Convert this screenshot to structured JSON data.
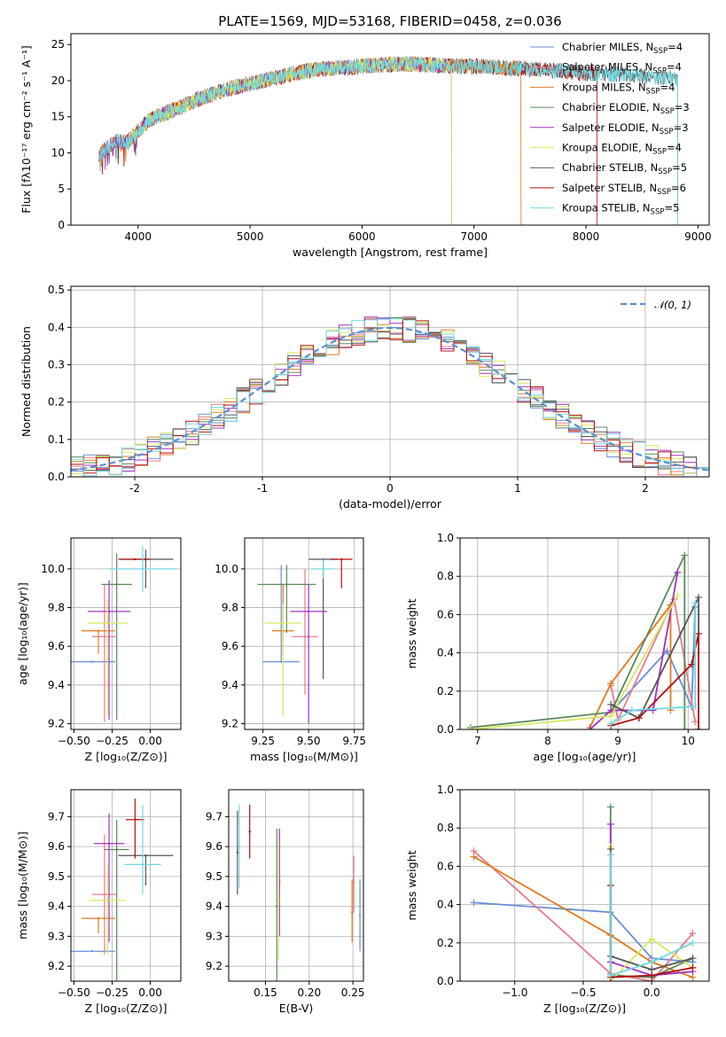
{
  "colors": {
    "chabrier_miles": "#6a8dd6",
    "salpeter_miles": "#e87a8e",
    "kroupa_miles": "#e07a20",
    "chabrier_elodie": "#5a8a5a",
    "salpeter_elodie": "#a030c0",
    "kroupa_elodie": "#d8e860",
    "chabrier_stelib": "#555555",
    "salpeter_stelib": "#b01010",
    "kroupa_stelib": "#70d8e0",
    "normal": "#5b8fd6"
  },
  "chart_data": [
    {
      "id": "spectrum",
      "type": "line",
      "title": "PLATE=1569, MJD=53168, FIBERID=0458, z=0.036",
      "xlabel": "wavelength [Angstrom, rest frame]",
      "ylabel": "Flux [fλ10⁻¹⁷ erg cm⁻² s⁻¹ A⁻¹]",
      "xlim": [
        3400,
        9100
      ],
      "ylim": [
        0,
        26.5
      ],
      "xticks": [
        4000,
        5000,
        6000,
        7000,
        8000,
        9000
      ],
      "yticks": [
        0,
        5,
        10,
        15,
        20,
        25
      ],
      "grid": false,
      "legend_position": "upper right",
      "legend": [
        {
          "label": "Chabrier MILES, N",
          "sub": "SSP",
          "suffix": "=4",
          "color_key": "chabrier_miles"
        },
        {
          "label": "Salpeter MILES, N",
          "sub": "SSP",
          "suffix": "=4",
          "color_key": "salpeter_miles"
        },
        {
          "label": "Kroupa MILES, N",
          "sub": "SSP",
          "suffix": "=4",
          "color_key": "kroupa_miles"
        },
        {
          "label": "Chabrier ELODIE, N",
          "sub": "SSP",
          "suffix": "=3",
          "color_key": "chabrier_elodie"
        },
        {
          "label": "Salpeter ELODIE, N",
          "sub": "SSP",
          "suffix": "=3",
          "color_key": "salpeter_elodie"
        },
        {
          "label": "Kroupa ELODIE, N",
          "sub": "SSP",
          "suffix": "=4",
          "color_key": "kroupa_elodie"
        },
        {
          "label": "Chabrier STELIB, N",
          "sub": "SSP",
          "suffix": "=5",
          "color_key": "chabrier_stelib"
        },
        {
          "label": "Salpeter STELIB, N",
          "sub": "SSP",
          "suffix": "=6",
          "color_key": "salpeter_stelib"
        },
        {
          "label": "Kroupa STELIB, N",
          "sub": "SSP",
          "suffix": "=5",
          "color_key": "kroupa_stelib"
        }
      ],
      "continuum": {
        "x": [
          3650,
          3700,
          3800,
          3900,
          4000,
          4100,
          4200,
          4400,
          4600,
          4800,
          5000,
          5200,
          5400,
          5600,
          5800,
          6000,
          6200,
          6400,
          6600,
          6800,
          7000,
          7200,
          7400,
          7600,
          7800,
          8000,
          8200,
          8400,
          8600,
          8800
        ],
        "y": [
          9.5,
          10.5,
          11.5,
          11.5,
          13.0,
          14.5,
          15.2,
          16.5,
          17.8,
          18.8,
          19.6,
          20.3,
          21.0,
          21.6,
          21.8,
          22.0,
          22.2,
          22.3,
          22.2,
          22.0,
          22.0,
          21.8,
          21.7,
          21.5,
          21.3,
          21.0,
          20.9,
          20.8,
          20.5,
          20.3
        ]
      },
      "models": [
        {
          "color_key": "chabrier_stelib",
          "xmin": 3650,
          "xmax": 8820
        },
        {
          "color_key": "salpeter_stelib",
          "xmin": 3650,
          "xmax": 8100
        },
        {
          "color_key": "kroupa_miles",
          "xmin": 3650,
          "xmax": 7420
        },
        {
          "color_key": "salpeter_elodie",
          "xmin": 3650,
          "xmax": 6800
        },
        {
          "color_key": "kroupa_elodie",
          "xmin": 3910,
          "xmax": 6800
        },
        {
          "color_key": "kroupa_stelib",
          "xmin": 3650,
          "xmax": 8820
        }
      ]
    },
    {
      "id": "residuals",
      "type": "histogram",
      "xlabel": "(data-model)/error",
      "ylabel": "Normed distribution",
      "xlim": [
        -2.5,
        2.5
      ],
      "ylim": [
        0,
        0.51
      ],
      "xticks": [
        -2,
        -1,
        0,
        1,
        2
      ],
      "yticks": [
        0.0,
        0.1,
        0.2,
        0.3,
        0.4,
        0.5
      ],
      "grid": true,
      "legend_position": "upper right",
      "legend": [
        {
          "label": "𝒩(0, 1)",
          "color_key": "normal",
          "style": "dashed"
        }
      ],
      "bin_width": 0.1,
      "series_keys": [
        "chabrier_miles",
        "salpeter_miles",
        "kroupa_miles",
        "chabrier_elodie",
        "salpeter_elodie",
        "kroupa_elodie",
        "chabrier_stelib",
        "salpeter_stelib",
        "kroupa_stelib"
      ]
    },
    {
      "id": "age_vs_Z",
      "type": "scatter",
      "xlabel": "Z [log₁₀(Z/Z⊙)]",
      "ylabel": "age  [log₁₀(age/yr)]",
      "xlim": [
        -0.52,
        0.2
      ],
      "ylim": [
        9.17,
        10.16
      ],
      "xticks": [
        -0.5,
        -0.25,
        0.0
      ],
      "xticklabels": [
        "−0.50",
        "−0.25",
        "0.00"
      ],
      "yticks": [
        9.2,
        9.4,
        9.6,
        9.8,
        10.0
      ],
      "yticklabels": [
        "9.2",
        "9.4",
        "9.6",
        "9.8",
        "10.0"
      ],
      "grid": true,
      "points": [
        {
          "x": -0.38,
          "y": 9.52,
          "xerr": 0.15,
          "yerr_lo": 0.0,
          "yerr_hi": 0.0,
          "color_key": "chabrier_miles"
        },
        {
          "x": -0.3,
          "y": 9.65,
          "xerr": 0.08,
          "yerr_lo": 0.44,
          "yerr_hi": 0.27,
          "color_key": "salpeter_miles"
        },
        {
          "x": -0.34,
          "y": 9.68,
          "xerr": 0.11,
          "yerr_lo": 0.12,
          "yerr_hi": 0.0,
          "color_key": "kroupa_miles"
        },
        {
          "x": -0.22,
          "y": 9.92,
          "xerr": 0.1,
          "yerr_lo": 0.7,
          "yerr_hi": 0.16,
          "color_key": "chabrier_elodie"
        },
        {
          "x": -0.27,
          "y": 9.78,
          "xerr": 0.14,
          "yerr_lo": 0.56,
          "yerr_hi": 0.16,
          "color_key": "salpeter_elodie"
        },
        {
          "x": -0.28,
          "y": 9.72,
          "xerr": 0.13,
          "yerr_lo": 0.48,
          "yerr_hi": 0.12,
          "color_key": "kroupa_elodie"
        },
        {
          "x": -0.03,
          "y": 10.05,
          "xerr": 0.18,
          "yerr_lo": 0.15,
          "yerr_hi": 0.05,
          "color_key": "chabrier_stelib"
        },
        {
          "x": -0.1,
          "y": 10.05,
          "xerr": 0.1,
          "yerr_lo": 0.0,
          "yerr_hi": 0.0,
          "color_key": "salpeter_stelib"
        },
        {
          "x": -0.05,
          "y": 10.0,
          "xerr": 0.22,
          "yerr_lo": 0.12,
          "yerr_hi": 0.12,
          "color_key": "kroupa_stelib"
        }
      ]
    },
    {
      "id": "age_vs_mass",
      "type": "scatter",
      "xlabel": "mass [log₁₀(M/M⊙)]",
      "ylabel": "",
      "xlim": [
        9.15,
        9.8
      ],
      "ylim": [
        9.17,
        10.16
      ],
      "xticks": [
        9.25,
        9.5,
        9.75
      ],
      "xticklabels": [
        "9.25",
        "9.50",
        "9.75"
      ],
      "yticks": [
        9.2,
        9.4,
        9.6,
        9.8,
        10.0
      ],
      "yticklabels": [
        "9.2",
        "9.4",
        "9.6",
        "9.8",
        "10.0"
      ],
      "grid": true,
      "points": [
        {
          "x": 9.35,
          "y": 9.52,
          "xerr": 0.1,
          "yerr_lo": 0.0,
          "yerr_hi": 0.5,
          "color_key": "chabrier_miles"
        },
        {
          "x": 9.48,
          "y": 9.65,
          "xerr": 0.07,
          "yerr_lo": 0.3,
          "yerr_hi": 0.35,
          "color_key": "salpeter_miles"
        },
        {
          "x": 9.36,
          "y": 9.68,
          "xerr": 0.06,
          "yerr_lo": 0.12,
          "yerr_hi": 0.24,
          "color_key": "kroupa_miles"
        },
        {
          "x": 9.38,
          "y": 9.92,
          "xerr": 0.16,
          "yerr_lo": 0.25,
          "yerr_hi": 0.1,
          "color_key": "chabrier_elodie"
        },
        {
          "x": 9.5,
          "y": 9.78,
          "xerr": 0.1,
          "yerr_lo": 0.58,
          "yerr_hi": 0.14,
          "color_key": "salpeter_elodie"
        },
        {
          "x": 9.36,
          "y": 9.72,
          "xerr": 0.1,
          "yerr_lo": 0.48,
          "yerr_hi": 0.1,
          "color_key": "kroupa_elodie"
        },
        {
          "x": 9.58,
          "y": 10.05,
          "xerr": 0.08,
          "yerr_lo": 0.62,
          "yerr_hi": 0.0,
          "color_key": "chabrier_stelib"
        },
        {
          "x": 9.68,
          "y": 10.05,
          "xerr": 0.06,
          "yerr_lo": 0.15,
          "yerr_hi": 0.0,
          "color_key": "salpeter_stelib"
        },
        {
          "x": 9.58,
          "y": 10.0,
          "xerr": 0.06,
          "yerr_lo": 0.05,
          "yerr_hi": 0.05,
          "color_key": "kroupa_stelib"
        }
      ]
    },
    {
      "id": "weight_vs_age",
      "type": "line",
      "xlabel": "age  [log₁₀(age/yr)]",
      "ylabel": "mass weight",
      "xlim": [
        6.75,
        10.3
      ],
      "ylim": [
        0,
        1.0
      ],
      "xticks": [
        7,
        8,
        9,
        10
      ],
      "xticklabels": [
        "7",
        "8",
        "9",
        "10"
      ],
      "yticks": [
        0.0,
        0.2,
        0.4,
        0.6,
        0.8,
        1.0
      ],
      "yticklabels": [
        "0.0",
        "0.2",
        "0.4",
        "0.6",
        "0.8",
        "1.0"
      ],
      "grid": true,
      "series": [
        {
          "color_key": "chabrier_miles",
          "x": [
            8.9,
            9.7,
            10.05,
            10.1
          ],
          "y": [
            0.09,
            0.41,
            0.12,
            0.64
          ]
        },
        {
          "color_key": "salpeter_miles",
          "x": [
            8.9,
            9.0,
            9.8,
            10.1
          ],
          "y": [
            0.23,
            0.05,
            0.68,
            0.04
          ]
        },
        {
          "color_key": "kroupa_miles",
          "x": [
            8.6,
            8.9,
            9.75,
            9.75
          ],
          "y": [
            0.01,
            0.24,
            0.65,
            0.1
          ]
        },
        {
          "color_key": "chabrier_elodie",
          "x": [
            6.9,
            8.9,
            9.95,
            9.95
          ],
          "y": [
            0.01,
            0.09,
            0.91,
            0.0
          ]
        },
        {
          "color_key": "salpeter_elodie",
          "x": [
            8.6,
            8.9,
            9.5,
            9.85
          ],
          "y": [
            0.0,
            0.1,
            0.1,
            0.82
          ]
        },
        {
          "color_key": "kroupa_elodie",
          "x": [
            6.9,
            8.9,
            9.85
          ],
          "y": [
            0.0,
            0.07,
            0.7
          ]
        },
        {
          "color_key": "chabrier_stelib",
          "x": [
            8.9,
            9.3,
            10.15,
            10.15
          ],
          "y": [
            0.13,
            0.06,
            0.69,
            0.0
          ]
        },
        {
          "color_key": "salpeter_stelib",
          "x": [
            8.9,
            9.3,
            10.05,
            10.15,
            10.15
          ],
          "y": [
            0.02,
            0.06,
            0.34,
            0.5,
            0.0
          ]
        },
        {
          "color_key": "kroupa_stelib",
          "x": [
            8.9,
            9.2,
            10.1,
            10.1
          ],
          "y": [
            0.03,
            0.1,
            0.12,
            0.66
          ]
        }
      ]
    },
    {
      "id": "mass_vs_Z",
      "type": "scatter",
      "xlabel": "Z [log₁₀(Z/Z⊙)]",
      "ylabel": "mass [log₁₀(M/M⊙)]",
      "xlim": [
        -0.52,
        0.2
      ],
      "ylim": [
        9.15,
        9.79
      ],
      "xticks": [
        -0.5,
        -0.25,
        0.0
      ],
      "xticklabels": [
        "−0.50",
        "−0.25",
        "0.00"
      ],
      "yticks": [
        9.2,
        9.3,
        9.4,
        9.5,
        9.6,
        9.7
      ],
      "yticklabels": [
        "9.2",
        "9.3",
        "9.4",
        "9.5",
        "9.6",
        "9.7"
      ],
      "grid": true,
      "points": [
        {
          "x": -0.38,
          "y": 9.25,
          "xerr": 0.15,
          "yerr_lo": 0.0,
          "yerr_hi": 0.0,
          "color_key": "chabrier_miles"
        },
        {
          "x": -0.3,
          "y": 9.44,
          "xerr": 0.08,
          "yerr_lo": 0.2,
          "yerr_hi": 0.2,
          "color_key": "salpeter_miles"
        },
        {
          "x": -0.34,
          "y": 9.36,
          "xerr": 0.11,
          "yerr_lo": 0.05,
          "yerr_hi": 0.0,
          "color_key": "kroupa_miles"
        },
        {
          "x": -0.22,
          "y": 9.59,
          "xerr": 0.08,
          "yerr_lo": 0.44,
          "yerr_hi": 0.1,
          "color_key": "chabrier_elodie"
        },
        {
          "x": -0.27,
          "y": 9.61,
          "xerr": 0.1,
          "yerr_lo": 0.33,
          "yerr_hi": 0.1,
          "color_key": "salpeter_elodie"
        },
        {
          "x": -0.28,
          "y": 9.42,
          "xerr": 0.12,
          "yerr_lo": 0.18,
          "yerr_hi": 0.12,
          "color_key": "kroupa_elodie"
        },
        {
          "x": -0.03,
          "y": 9.57,
          "xerr": 0.18,
          "yerr_lo": 0.1,
          "yerr_hi": 0.0,
          "color_key": "chabrier_stelib"
        },
        {
          "x": -0.1,
          "y": 9.69,
          "xerr": 0.06,
          "yerr_lo": 0.13,
          "yerr_hi": 0.07,
          "color_key": "salpeter_stelib"
        },
        {
          "x": -0.05,
          "y": 9.54,
          "xerr": 0.12,
          "yerr_lo": 0.1,
          "yerr_hi": 0.2,
          "color_key": "kroupa_stelib"
        }
      ]
    },
    {
      "id": "mass_vs_EBV",
      "type": "scatter",
      "xlabel": "E(B-V)",
      "ylabel": "",
      "xlim": [
        0.108,
        0.262
      ],
      "ylim": [
        9.15,
        9.79
      ],
      "xticks": [
        0.15,
        0.2,
        0.25
      ],
      "xticklabels": [
        "0.15",
        "0.20",
        "0.25"
      ],
      "yticks": [
        9.2,
        9.3,
        9.4,
        9.5,
        9.6,
        9.7
      ],
      "yticklabels": [
        "9.2",
        "9.3",
        "9.4",
        "9.5",
        "9.6",
        "9.7"
      ],
      "grid": true,
      "points": [
        {
          "x": 0.258,
          "y": 9.37,
          "xerr": 0.0,
          "yerr_lo": 0.12,
          "yerr_hi": 0.12,
          "color_key": "chabrier_miles"
        },
        {
          "x": 0.251,
          "y": 9.48,
          "xerr": 0.0,
          "yerr_lo": 0.1,
          "yerr_hi": 0.09,
          "color_key": "salpeter_miles"
        },
        {
          "x": 0.249,
          "y": 9.38,
          "xerr": 0.0,
          "yerr_lo": 0.1,
          "yerr_hi": 0.11,
          "color_key": "kroupa_miles"
        },
        {
          "x": 0.163,
          "y": 9.4,
          "xerr": 0.0,
          "yerr_lo": 0.25,
          "yerr_hi": 0.26,
          "color_key": "chabrier_elodie"
        },
        {
          "x": 0.166,
          "y": 9.48,
          "xerr": 0.0,
          "yerr_lo": 0.18,
          "yerr_hi": 0.18,
          "color_key": "salpeter_elodie"
        },
        {
          "x": 0.165,
          "y": 9.42,
          "xerr": 0.0,
          "yerr_lo": 0.2,
          "yerr_hi": 0.2,
          "color_key": "kroupa_elodie"
        },
        {
          "x": 0.118,
          "y": 9.58,
          "xerr": 0.0,
          "yerr_lo": 0.14,
          "yerr_hi": 0.14,
          "color_key": "chabrier_stelib"
        },
        {
          "x": 0.132,
          "y": 9.65,
          "xerr": 0.0,
          "yerr_lo": 0.09,
          "yerr_hi": 0.09,
          "color_key": "salpeter_stelib"
        },
        {
          "x": 0.12,
          "y": 9.6,
          "xerr": 0.0,
          "yerr_lo": 0.14,
          "yerr_hi": 0.14,
          "color_key": "kroupa_stelib"
        }
      ]
    },
    {
      "id": "weight_vs_Z",
      "type": "line",
      "xlabel": "Z [log₁₀(Z/Z⊙)]",
      "ylabel": "mass weight",
      "xlim": [
        -1.4,
        0.42
      ],
      "ylim": [
        0,
        1.0
      ],
      "xticks": [
        -1.0,
        -0.5,
        0.0
      ],
      "xticklabels": [
        "−1.0",
        "−0.5",
        "0.0"
      ],
      "yticks": [
        0.0,
        0.2,
        0.4,
        0.6,
        0.8,
        1.0
      ],
      "yticklabels": [
        "0.0",
        "0.2",
        "0.4",
        "0.6",
        "0.8",
        "1.0"
      ],
      "grid": true,
      "series": [
        {
          "color_key": "chabrier_miles",
          "x": [
            -1.3,
            -0.3,
            0.0,
            0.3
          ],
          "y": [
            0.41,
            0.36,
            0.12,
            0.1
          ]
        },
        {
          "color_key": "salpeter_miles",
          "x": [
            -1.3,
            -0.3,
            0.0,
            0.3
          ],
          "y": [
            0.68,
            0.04,
            0.0,
            0.25
          ]
        },
        {
          "color_key": "kroupa_miles",
          "x": [
            -1.3,
            -0.3,
            0.0,
            0.3
          ],
          "y": [
            0.65,
            0.24,
            0.1,
            0.02
          ]
        },
        {
          "color_key": "chabrier_elodie",
          "x": [
            -0.3,
            -0.3,
            0.0,
            0.3
          ],
          "y": [
            0.91,
            0.03,
            0.02,
            0.12
          ]
        },
        {
          "color_key": "salpeter_elodie",
          "x": [
            -0.3,
            -0.3,
            0.0,
            0.3
          ],
          "y": [
            0.82,
            0.1,
            0.03,
            0.05
          ]
        },
        {
          "color_key": "kroupa_elodie",
          "x": [
            -0.3,
            -0.3,
            0.0,
            0.3
          ],
          "y": [
            0.7,
            0.0,
            0.22,
            0.07
          ]
        },
        {
          "color_key": "chabrier_stelib",
          "x": [
            -0.3,
            -0.3,
            0.0,
            0.3
          ],
          "y": [
            0.69,
            0.13,
            0.06,
            0.12
          ]
        },
        {
          "color_key": "salpeter_stelib",
          "x": [
            -0.3,
            -0.3,
            0.0,
            0.3
          ],
          "y": [
            0.5,
            0.02,
            0.03,
            0.07
          ]
        },
        {
          "color_key": "kroupa_stelib",
          "x": [
            -0.3,
            -0.3,
            0.0,
            0.3
          ],
          "y": [
            0.66,
            0.03,
            0.1,
            0.2
          ]
        }
      ]
    }
  ]
}
